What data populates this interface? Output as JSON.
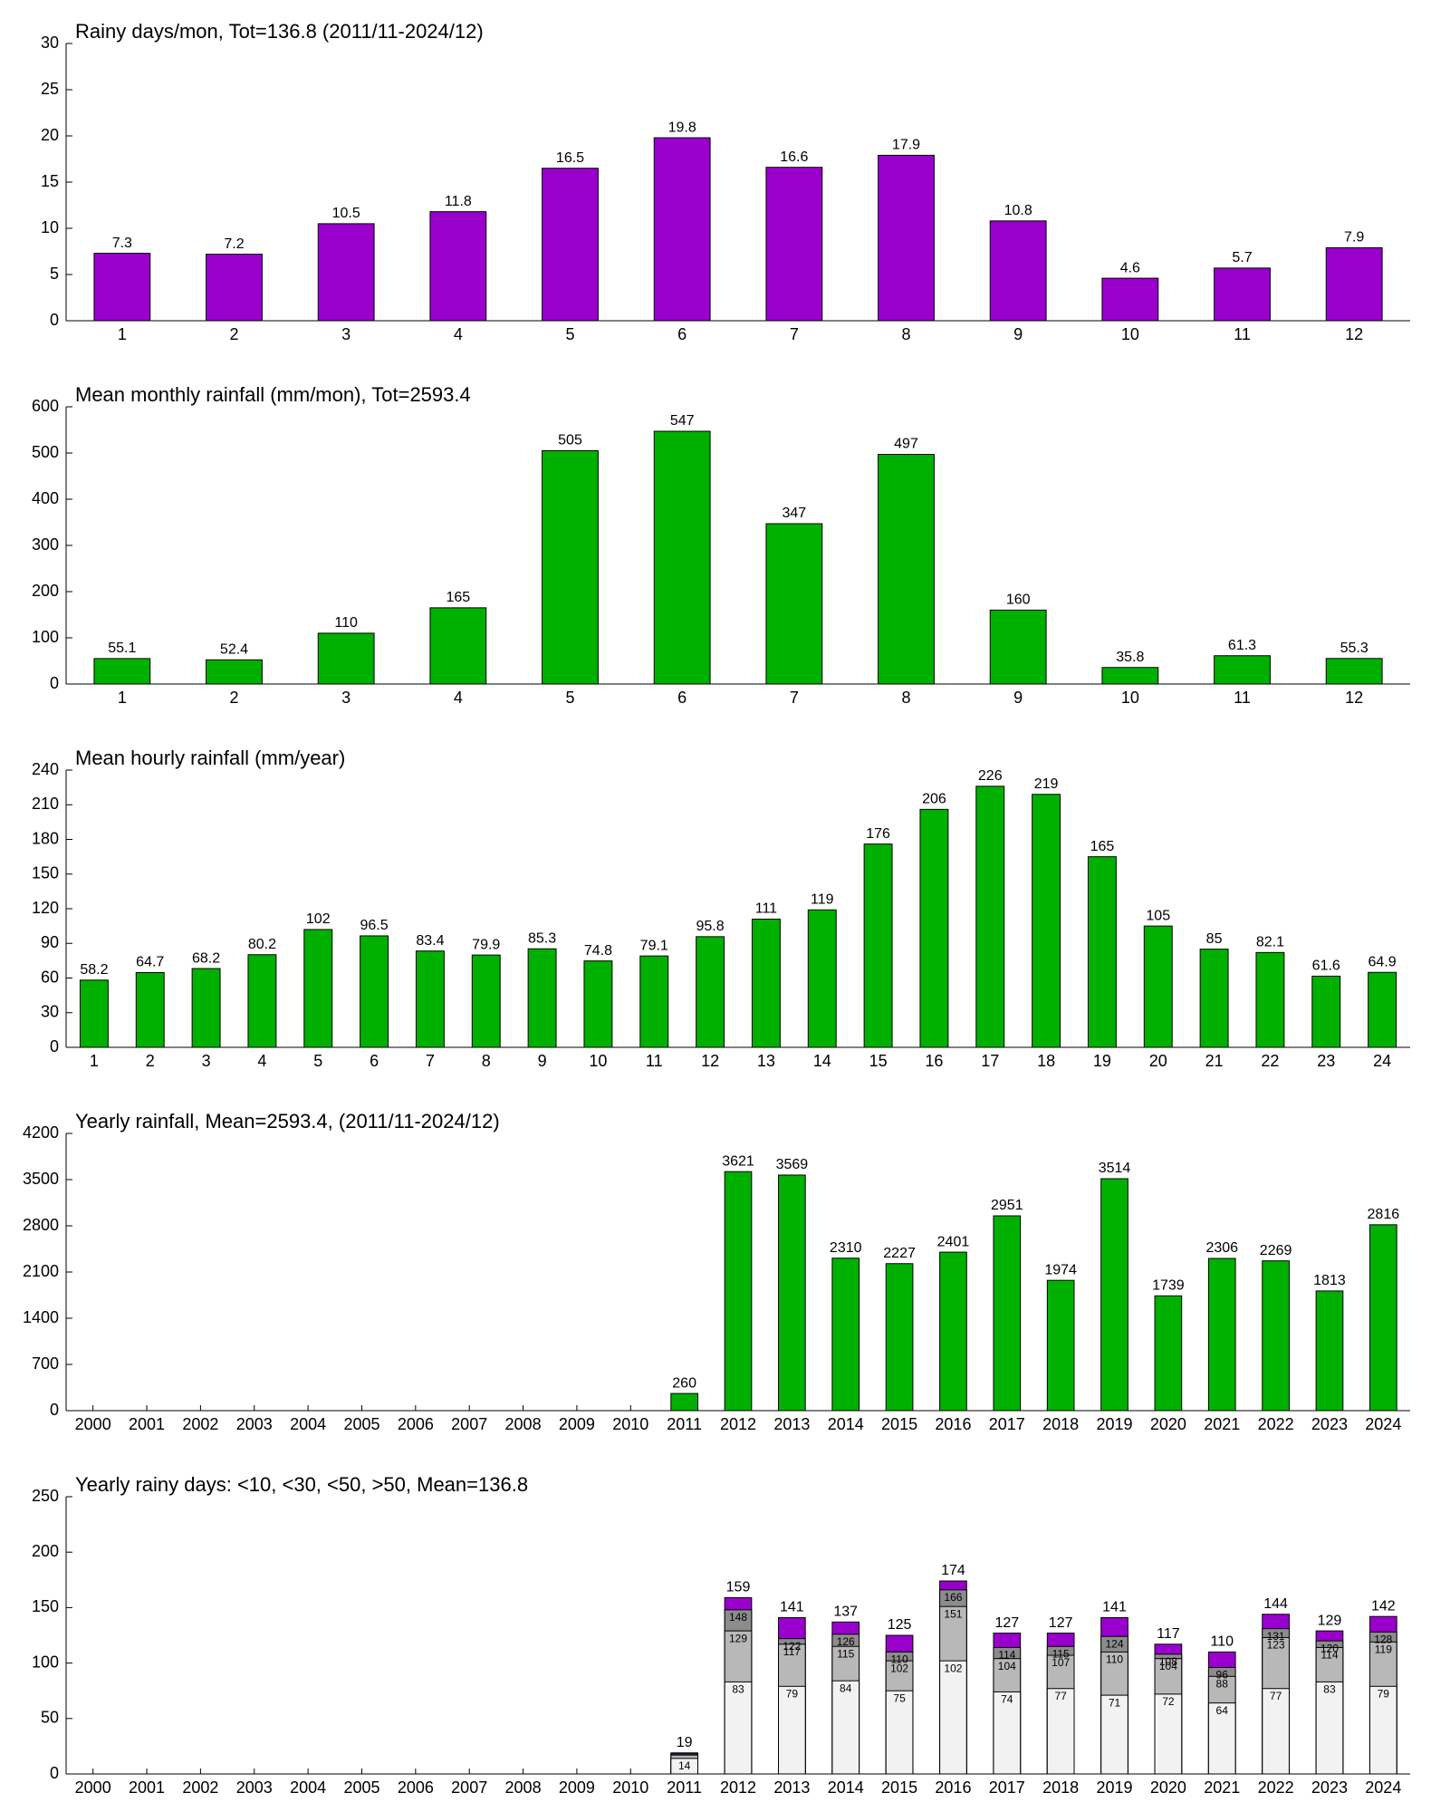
{
  "chart_data": [
    {
      "type": "bar",
      "title": "Rainy days/mon, Tot=136.8 (2011/11-2024/12)",
      "categories": [
        "1",
        "2",
        "3",
        "4",
        "5",
        "6",
        "7",
        "8",
        "9",
        "10",
        "11",
        "12"
      ],
      "values": [
        7.3,
        7.2,
        10.5,
        11.8,
        16.5,
        19.8,
        16.6,
        17.9,
        10.8,
        4.6,
        5.7,
        7.9
      ],
      "color": "#9900cc",
      "ylim": [
        0,
        30
      ],
      "yticks": [
        0,
        5,
        10,
        15,
        20,
        25,
        30
      ]
    },
    {
      "type": "bar",
      "title": "Mean monthly rainfall (mm/mon), Tot=2593.4",
      "categories": [
        "1",
        "2",
        "3",
        "4",
        "5",
        "6",
        "7",
        "8",
        "9",
        "10",
        "11",
        "12"
      ],
      "values": [
        55.1,
        52.4,
        110,
        165,
        505,
        547,
        347,
        497,
        160,
        35.8,
        61.3,
        55.3
      ],
      "color": "#00b000",
      "ylim": [
        0,
        600
      ],
      "yticks": [
        0,
        100,
        200,
        300,
        400,
        500,
        600
      ]
    },
    {
      "type": "bar",
      "title": "Mean hourly rainfall (mm/year)",
      "categories": [
        "1",
        "2",
        "3",
        "4",
        "5",
        "6",
        "7",
        "8",
        "9",
        "10",
        "11",
        "12",
        "13",
        "14",
        "15",
        "16",
        "17",
        "18",
        "19",
        "20",
        "21",
        "22",
        "23",
        "24"
      ],
      "values": [
        58.2,
        64.7,
        68.2,
        80.2,
        102,
        96.5,
        83.4,
        79.9,
        85.3,
        74.8,
        79.1,
        95.8,
        111,
        119,
        176,
        206,
        226,
        219,
        165,
        105,
        85,
        82.1,
        61.6,
        64.9
      ],
      "color": "#00b000",
      "ylim": [
        0,
        240
      ],
      "yticks": [
        0,
        30,
        60,
        90,
        120,
        150,
        180,
        210,
        240
      ]
    },
    {
      "type": "bar",
      "title": "Yearly rainfall, Mean=2593.4, (2011/11-2024/12)",
      "categories": [
        "2000",
        "2001",
        "2002",
        "2003",
        "2004",
        "2005",
        "2006",
        "2007",
        "2008",
        "2009",
        "2010",
        "2011",
        "2012",
        "2013",
        "2014",
        "2015",
        "2016",
        "2017",
        "2018",
        "2019",
        "2020",
        "2021",
        "2022",
        "2023",
        "2024"
      ],
      "values": [
        null,
        null,
        null,
        null,
        null,
        null,
        null,
        null,
        null,
        null,
        null,
        260,
        3621,
        3569,
        2310,
        2227,
        2401,
        2951,
        1974,
        3514,
        1739,
        2306,
        2269,
        1813,
        2816
      ],
      "color": "#00b000",
      "ylim": [
        0,
        4200
      ],
      "yticks": [
        0,
        700,
        1400,
        2100,
        2800,
        3500,
        4200
      ]
    },
    {
      "type": "overlapped_bar",
      "title": "Yearly rainy days: <10, <30, <50, >50, Mean=136.8",
      "categories": [
        "2000",
        "2001",
        "2002",
        "2003",
        "2004",
        "2005",
        "2006",
        "2007",
        "2008",
        "2009",
        "2010",
        "2011",
        "2012",
        "2013",
        "2014",
        "2015",
        "2016",
        "2017",
        "2018",
        "2019",
        "2020",
        "2021",
        "2022",
        "2023",
        "2024"
      ],
      "series": [
        {
          "color": "#9900cc",
          "values": [
            null,
            null,
            null,
            null,
            null,
            null,
            null,
            null,
            null,
            null,
            null,
            19,
            159,
            141,
            137,
            125,
            174,
            127,
            127,
            141,
            117,
            110,
            144,
            129,
            142
          ]
        },
        {
          "color": "#8c8c8c",
          "values": [
            null,
            null,
            null,
            null,
            null,
            null,
            null,
            null,
            null,
            null,
            null,
            18,
            148,
            122,
            126,
            110,
            166,
            114,
            115,
            124,
            108,
            96,
            131,
            120,
            128
          ]
        },
        {
          "color": "#b8b8b8",
          "values": [
            null,
            null,
            null,
            null,
            null,
            null,
            null,
            null,
            null,
            null,
            null,
            17,
            129,
            117,
            115,
            102,
            151,
            104,
            107,
            110,
            104,
            88,
            123,
            114,
            119
          ]
        },
        {
          "color": "#f2f2f2",
          "values": [
            null,
            null,
            null,
            null,
            null,
            null,
            null,
            null,
            null,
            null,
            null,
            14,
            83,
            79,
            84,
            75,
            102,
            74,
            77,
            71,
            72,
            64,
            77,
            83,
            79
          ]
        }
      ],
      "ylim": [
        0,
        250
      ],
      "yticks": [
        0,
        50,
        100,
        150,
        200,
        250
      ]
    }
  ]
}
